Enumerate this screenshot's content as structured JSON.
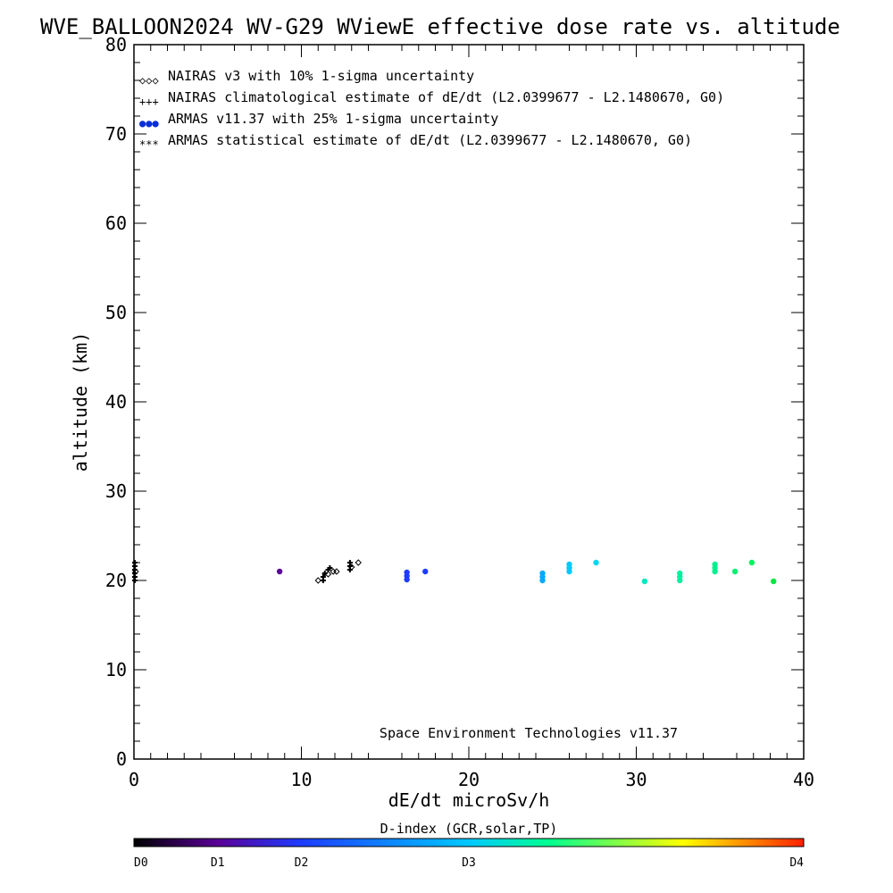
{
  "chart_data": {
    "type": "scatter",
    "title": "WVE_BALLOON2024 WV-G29 WViewE effective dose rate vs. altitude",
    "xlabel": "dE/dt microSv/h",
    "ylabel": "altitude (km)",
    "xlim": [
      0,
      40
    ],
    "ylim": [
      0,
      80
    ],
    "x_ticks": [
      0,
      10,
      20,
      30,
      40
    ],
    "y_ticks": [
      0,
      10,
      20,
      30,
      40,
      50,
      60,
      70,
      80
    ],
    "grid": false,
    "legend_position": "top-left",
    "legend": [
      {
        "marker": "◇◇◇",
        "label": "NAIRAS v3 with 10% 1-sigma uncertainty",
        "color": "#000000"
      },
      {
        "marker": "+++",
        "label": "NAIRAS climatological estimate of dE/dt (L2.0399677 - L2.1480670, G0)",
        "color": "#000000"
      },
      {
        "marker": "●●●",
        "label": "ARMAS v11.37 with 25% 1-sigma uncertainty",
        "color": "#0a2fd6"
      },
      {
        "marker": "***",
        "label": "ARMAS statistical estimate of dE/dt (L2.0399677 - L2.1480670, G0)",
        "color": "#000000"
      }
    ],
    "annotation": "Space Environment Technologies v11.37",
    "colorbar": {
      "title": "D-index (GCR,solar,TP)",
      "labels": [
        {
          "text": "D0",
          "pos": 0
        },
        {
          "text": "D1",
          "pos": 0.125
        },
        {
          "text": "D2",
          "pos": 0.25
        },
        {
          "text": "D3",
          "pos": 0.5
        },
        {
          "text": "D4",
          "pos": 1
        }
      ],
      "stops": [
        "#000000",
        "#5a0096",
        "#1e3cff",
        "#00c8ff",
        "#00ff90",
        "#ffff00",
        "#ff2000"
      ]
    },
    "series": [
      {
        "marker": "diamond",
        "color": "#000000",
        "points": [
          [
            11.0,
            20.0
          ],
          [
            11.6,
            20.7
          ],
          [
            11.9,
            21.0
          ],
          [
            12.1,
            21.0
          ],
          [
            13.0,
            21.5
          ],
          [
            13.4,
            22.0
          ],
          [
            0.1,
            21.0
          ]
        ]
      },
      {
        "marker": "plus",
        "color": "#000000",
        "points": [
          [
            0.05,
            20.0
          ],
          [
            0.05,
            20.4
          ],
          [
            0.05,
            20.8
          ],
          [
            0.05,
            21.2
          ],
          [
            0.05,
            21.6
          ],
          [
            0.05,
            22.0
          ],
          [
            11.3,
            20.0
          ],
          [
            11.3,
            20.4
          ],
          [
            11.4,
            20.8
          ],
          [
            11.6,
            21.2
          ],
          [
            11.7,
            21.4
          ],
          [
            12.9,
            21.2
          ],
          [
            12.9,
            21.6
          ],
          [
            12.9,
            22.0
          ]
        ]
      },
      {
        "marker": "dot",
        "color_by": "D-index",
        "points": [
          {
            "x": 8.7,
            "y": 21.0,
            "color": "#5a0096"
          },
          {
            "x": 16.3,
            "y": 20.1,
            "color": "#1e3cff"
          },
          {
            "x": 16.3,
            "y": 20.5,
            "color": "#1e3cff"
          },
          {
            "x": 16.3,
            "y": 20.9,
            "color": "#1e3cff"
          },
          {
            "x": 17.4,
            "y": 21.0,
            "color": "#1e3cff"
          },
          {
            "x": 24.4,
            "y": 20.0,
            "color": "#00aaff"
          },
          {
            "x": 24.4,
            "y": 20.4,
            "color": "#00aaff"
          },
          {
            "x": 24.4,
            "y": 20.8,
            "color": "#00aaff"
          },
          {
            "x": 26.0,
            "y": 21.0,
            "color": "#00c8ff"
          },
          {
            "x": 26.0,
            "y": 21.4,
            "color": "#00c8ff"
          },
          {
            "x": 26.0,
            "y": 21.8,
            "color": "#00c8ff"
          },
          {
            "x": 27.6,
            "y": 22.0,
            "color": "#00d8f0"
          },
          {
            "x": 30.5,
            "y": 19.9,
            "color": "#00e8c0"
          },
          {
            "x": 32.6,
            "y": 20.0,
            "color": "#00f0a0"
          },
          {
            "x": 32.6,
            "y": 20.4,
            "color": "#00f0a0"
          },
          {
            "x": 32.6,
            "y": 20.8,
            "color": "#00f0a0"
          },
          {
            "x": 34.7,
            "y": 21.0,
            "color": "#00f090"
          },
          {
            "x": 34.7,
            "y": 21.4,
            "color": "#00f090"
          },
          {
            "x": 34.7,
            "y": 21.8,
            "color": "#00f090"
          },
          {
            "x": 35.9,
            "y": 21.0,
            "color": "#00f070"
          },
          {
            "x": 36.9,
            "y": 22.0,
            "color": "#00f060"
          },
          {
            "x": 38.2,
            "y": 19.9,
            "color": "#00e840"
          }
        ]
      }
    ]
  }
}
